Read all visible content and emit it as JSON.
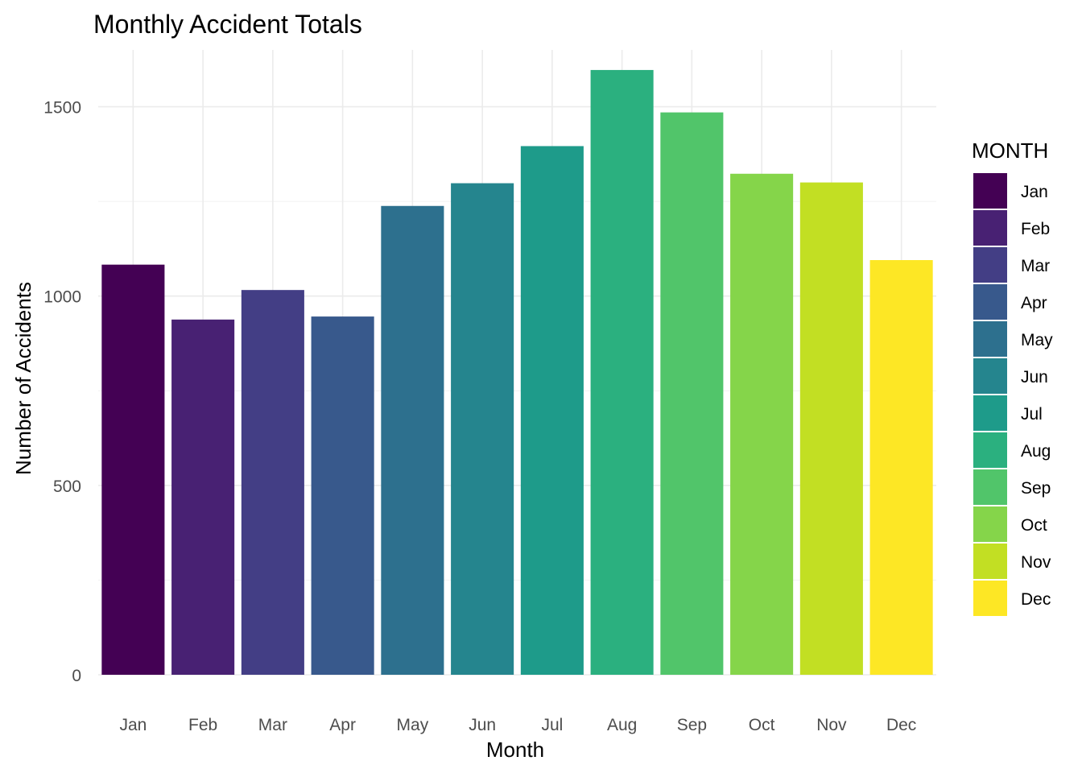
{
  "chart_data": {
    "type": "bar",
    "title": "Monthly Accident Totals",
    "xlabel": "Month",
    "ylabel": "Number of Accidents",
    "categories": [
      "Jan",
      "Feb",
      "Mar",
      "Apr",
      "May",
      "Jun",
      "Jul",
      "Aug",
      "Sep",
      "Oct",
      "Nov",
      "Dec"
    ],
    "values": [
      1083,
      938,
      1016,
      946,
      1238,
      1298,
      1396,
      1597,
      1485,
      1323,
      1300,
      1095
    ],
    "colors": [
      "#440154",
      "#482173",
      "#433E85",
      "#38598C",
      "#2D708E",
      "#25858E",
      "#1E9B8A",
      "#2BB07F",
      "#51C56A",
      "#85D54A",
      "#C2DF23",
      "#FDE725"
    ],
    "ylim": [
      0,
      1650
    ],
    "yticks": [
      0,
      500,
      1000,
      1500
    ],
    "grid": true,
    "legend": {
      "title": "MONTH",
      "position": "right"
    }
  }
}
